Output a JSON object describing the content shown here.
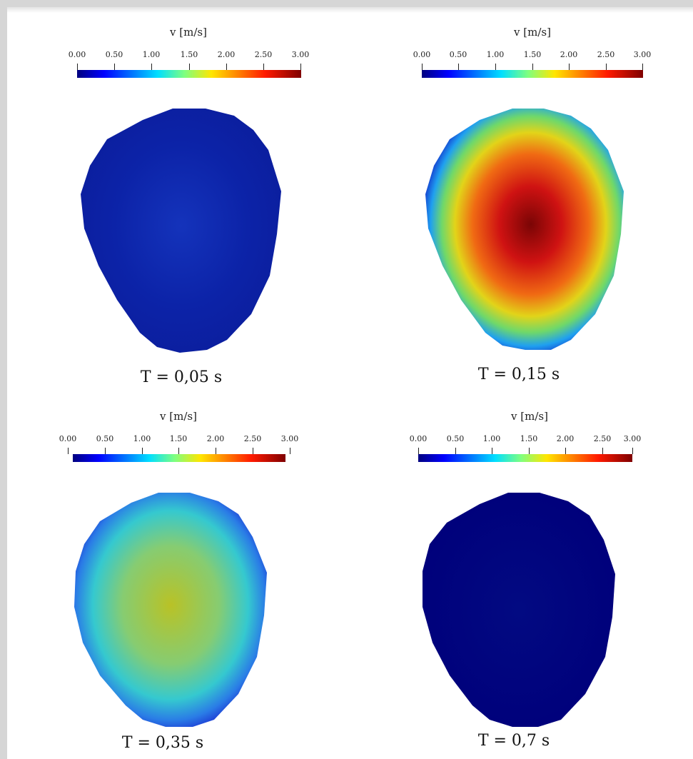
{
  "panels": [
    {
      "colorbar": {
        "title": "v [m/s]",
        "ticks": [
          "0.00",
          "0.50",
          "1.00",
          "1.50",
          "2.00",
          "2.50",
          "3.00"
        ]
      },
      "time_label": "T = 0,05 s",
      "colors": {
        "edge": "#0b1e9e",
        "mid": "#0c23a8",
        "center": "#1433bb"
      }
    },
    {
      "colorbar": {
        "title": "v [m/s]",
        "ticks": [
          "0.00",
          "0.50",
          "1.00",
          "1.50",
          "2.00",
          "2.50",
          "3.00"
        ]
      },
      "time_label": "T = 0,15 s",
      "colors": {
        "edge": "#1226c8",
        "ring1": "#1fa0f0",
        "ring2": "#6fd86a",
        "ring3": "#e2d419",
        "ring4": "#f06a13",
        "ring5": "#cf1212",
        "center": "#7a0505"
      }
    },
    {
      "colorbar": {
        "title": "v [m/s]",
        "ticks": [
          "0.00",
          "0.50",
          "1.00",
          "1.50",
          "2.00",
          "2.50",
          "3.00"
        ]
      },
      "time_label": "T = 0,35 s",
      "colors": {
        "edge": "#1a2ad0",
        "ring1": "#2a7ce6",
        "ring2": "#35c9cf",
        "ring3": "#86cc72",
        "center": "#b9c226"
      }
    },
    {
      "colorbar": {
        "title": "v [m/s]",
        "ticks": [
          "0.00",
          "0.50",
          "1.00",
          "1.50",
          "2.00",
          "2.50",
          "3.00"
        ]
      },
      "time_label": "T = 0,7 s",
      "colors": {
        "edge": "#00007b",
        "center": "#020a82"
      }
    }
  ]
}
